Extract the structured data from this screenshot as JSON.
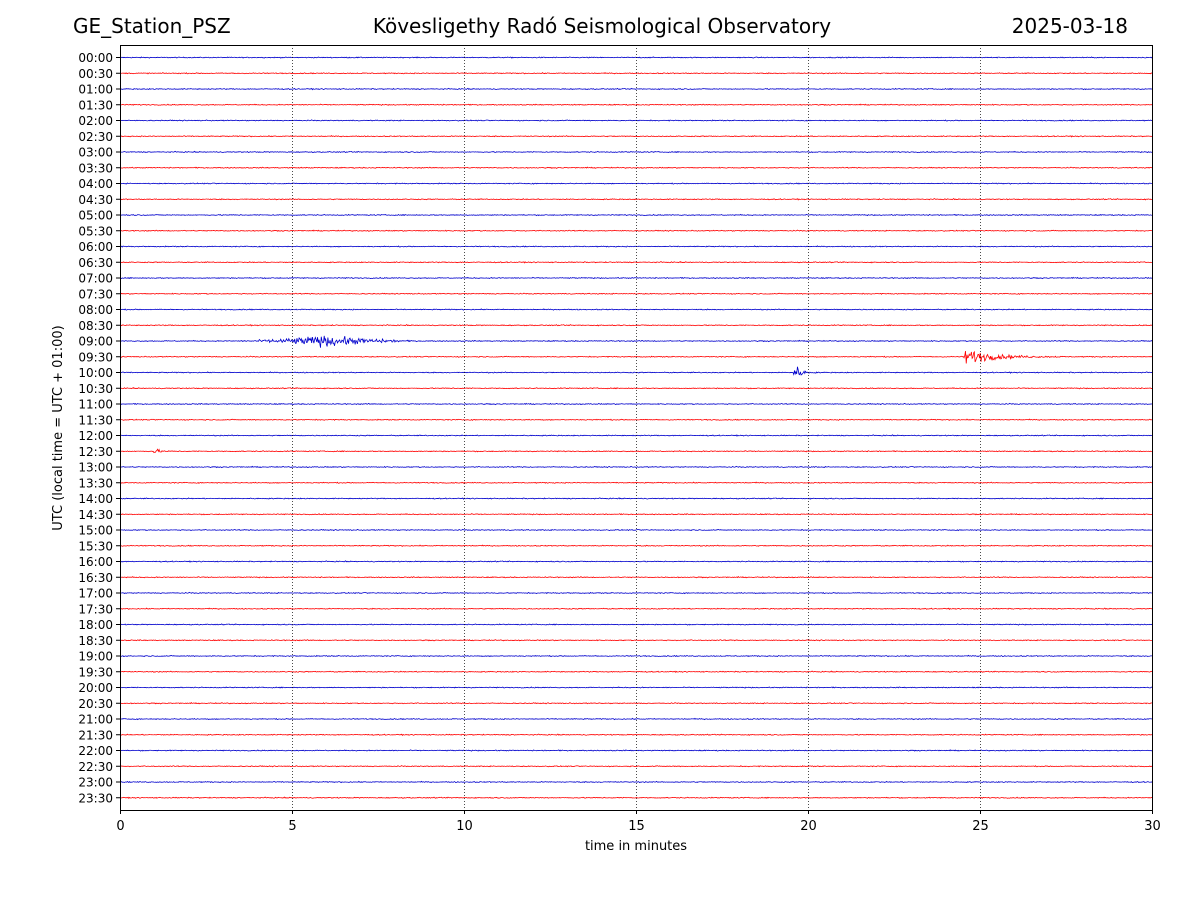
{
  "header": {
    "station": "GE_Station_PSZ",
    "observatory": "Kövesligethy Radó Seismological Observatory",
    "date": "2025-03-18"
  },
  "chart_data": {
    "type": "line",
    "title": "Kövesligethy Radó Seismological Observatory",
    "xlabel": "time in minutes",
    "ylabel": "UTC (local time = UTC + 01:00)",
    "xlim": [
      0,
      30
    ],
    "x_ticks": [
      0,
      5,
      10,
      15,
      20,
      25,
      30
    ],
    "vertical_gridlines_at": [
      5,
      10,
      15,
      20,
      25
    ],
    "grid": "vertical dotted",
    "row_labels": [
      "00:00",
      "00:30",
      "01:00",
      "01:30",
      "02:00",
      "02:30",
      "03:00",
      "03:30",
      "04:00",
      "04:30",
      "05:00",
      "05:30",
      "06:00",
      "06:30",
      "07:00",
      "07:30",
      "08:00",
      "08:30",
      "09:00",
      "09:30",
      "10:00",
      "10:30",
      "11:00",
      "11:30",
      "12:00",
      "12:30",
      "13:00",
      "13:30",
      "14:00",
      "14:30",
      "15:00",
      "15:30",
      "16:00",
      "16:30",
      "17:00",
      "17:30",
      "18:00",
      "18:30",
      "19:00",
      "19:30",
      "20:00",
      "20:30",
      "21:00",
      "21:30",
      "22:00",
      "22:30",
      "23:00",
      "23:30"
    ],
    "series_colors": [
      "#0000cc",
      "#ff0000"
    ],
    "background_noise_amplitude": 0.06,
    "events": [
      {
        "row": "09:00",
        "start_min": 3.4,
        "peak_min": 5.9,
        "end_min": 8.8,
        "amplitude": 0.65,
        "shape": "emergent"
      },
      {
        "row": "09:30",
        "start_min": 24.5,
        "peak_min": 24.6,
        "end_min": 27.5,
        "amplitude": 1.0,
        "shape": "impulsive"
      },
      {
        "row": "10:00",
        "start_min": 19.5,
        "peak_min": 19.65,
        "end_min": 20.3,
        "amplitude": 0.9,
        "shape": "impulsive"
      },
      {
        "row": "12:30",
        "start_min": 0.9,
        "peak_min": 1.05,
        "end_min": 1.5,
        "amplitude": 0.3,
        "shape": "impulsive"
      }
    ]
  }
}
